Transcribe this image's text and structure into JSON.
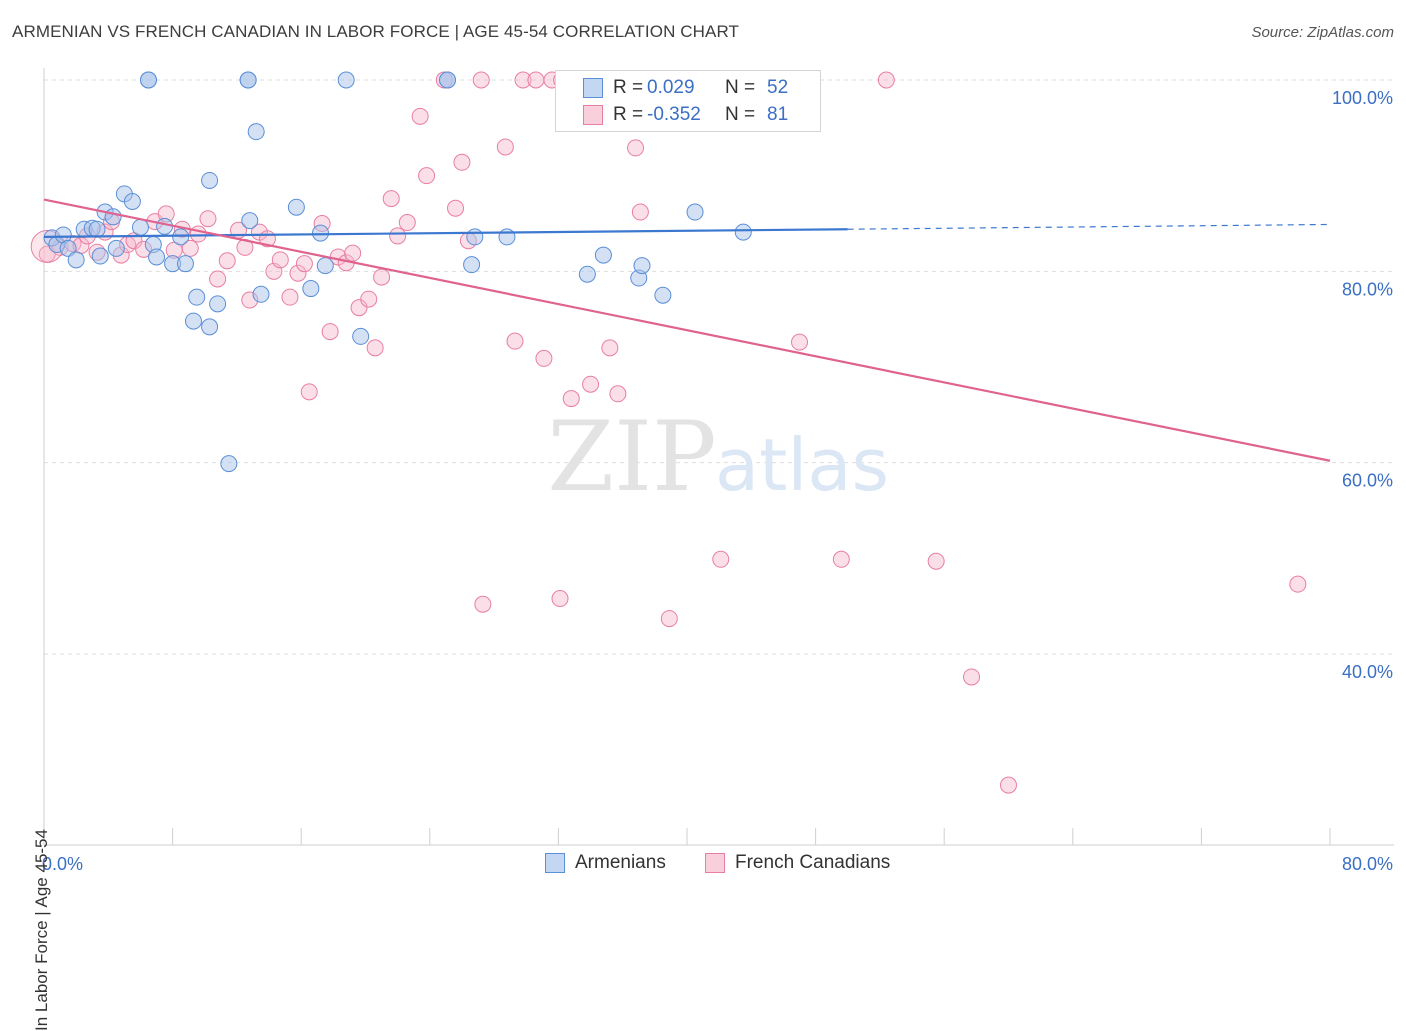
{
  "header": {
    "title": "ARMENIAN VS FRENCH CANADIAN IN LABOR FORCE | AGE 45-54 CORRELATION CHART",
    "source": "Source: ZipAtlas.com"
  },
  "watermark": {
    "zip": "ZIP",
    "atlas": "atlas"
  },
  "legend": {
    "armenians": {
      "r_label": "R =",
      "r_value": "0.029",
      "n_label": "N =",
      "n_value": "52"
    },
    "french_canadians": {
      "r_label": "R =",
      "r_value": "-0.352",
      "n_label": "N =",
      "n_value": "81"
    }
  },
  "bottom_legend": {
    "armenians": "Armenians",
    "french_canadians": "French Canadians"
  },
  "colors": {
    "armenian_fill": "#a9c4ec",
    "armenian_stroke": "#5b8fd6",
    "armenian_line": "#3c78d0",
    "french_fill": "#f6b9cc",
    "french_stroke": "#e87fa2",
    "french_line": "#e0628f",
    "axis_label": "#3b6fc4",
    "grid": "#dedede"
  },
  "chart_data": {
    "type": "scatter",
    "title": "ARMENIAN VS FRENCH CANADIAN IN LABOR FORCE | AGE 45-54 CORRELATION CHART",
    "xlabel": "",
    "ylabel": "In Labor Force | Age 45-54",
    "xlim": [
      0,
      80
    ],
    "ylim": [
      20,
      100
    ],
    "x_tick_labels": [
      "0.0%",
      "80.0%"
    ],
    "y_tick_values": [
      40,
      60,
      80,
      100
    ],
    "y_tick_labels": [
      "40.0%",
      "60.0%",
      "80.0%",
      "100.0%"
    ],
    "grid": "horizontal dashed",
    "legend_placement": "top-center",
    "series": [
      {
        "name": "Armenians",
        "trend": {
          "x_start": 0,
          "y_start": 83.6,
          "x_end": 50,
          "y_end": 84.4,
          "dashed_to_x": 80,
          "dashed_y_end": 84.9
        },
        "points": [
          [
            0.5,
            83.5
          ],
          [
            0.8,
            82.8
          ],
          [
            1.2,
            83.8
          ],
          [
            1.5,
            82.4
          ],
          [
            2.0,
            81.2
          ],
          [
            2.5,
            84.4
          ],
          [
            3.0,
            84.5
          ],
          [
            3.3,
            84.4
          ],
          [
            3.5,
            81.6
          ],
          [
            3.8,
            86.2
          ],
          [
            4.3,
            85.7
          ],
          [
            4.5,
            82.4
          ],
          [
            5.0,
            88.1
          ],
          [
            5.5,
            87.3
          ],
          [
            6.0,
            84.6
          ],
          [
            6.5,
            100.0
          ],
          [
            6.8,
            82.8
          ],
          [
            7.0,
            81.5
          ],
          [
            7.5,
            84.7
          ],
          [
            8.0,
            80.8
          ],
          [
            8.5,
            83.6
          ],
          [
            8.8,
            80.8
          ],
          [
            9.5,
            77.3
          ],
          [
            9.3,
            74.8
          ],
          [
            10.3,
            74.2
          ],
          [
            10.3,
            89.5
          ],
          [
            10.8,
            76.6
          ],
          [
            11.5,
            59.9
          ],
          [
            12.7,
            100.0
          ],
          [
            12.8,
            85.3
          ],
          [
            13.2,
            94.6
          ],
          [
            13.5,
            77.6
          ],
          [
            15.7,
            86.7
          ],
          [
            16.6,
            78.2
          ],
          [
            17.2,
            84.0
          ],
          [
            17.5,
            80.6
          ],
          [
            18.8,
            100.0
          ],
          [
            19.7,
            73.2
          ],
          [
            25.1,
            100.0
          ],
          [
            26.6,
            80.7
          ],
          [
            26.8,
            83.6
          ],
          [
            28.8,
            83.6
          ],
          [
            33.8,
            79.7
          ],
          [
            34.8,
            81.7
          ],
          [
            37.0,
            79.3
          ],
          [
            37.2,
            80.6
          ],
          [
            38.5,
            77.5
          ],
          [
            40.5,
            86.2
          ],
          [
            43.5,
            84.1
          ],
          [
            25.1,
            100.0
          ],
          [
            6.5,
            100.0
          ],
          [
            12.7,
            100.0
          ]
        ]
      },
      {
        "name": "French Canadians",
        "trend": {
          "x_start": 0,
          "y_start": 87.5,
          "x_end": 80,
          "y_end": 60.2
        },
        "points": [
          [
            0.2,
            81.8
          ],
          [
            1.0,
            82.5
          ],
          [
            1.8,
            82.9
          ],
          [
            2.3,
            82.7
          ],
          [
            2.7,
            83.7
          ],
          [
            3.3,
            82.0
          ],
          [
            3.8,
            84.1
          ],
          [
            4.2,
            85.2
          ],
          [
            4.8,
            81.7
          ],
          [
            5.2,
            82.8
          ],
          [
            5.6,
            83.2
          ],
          [
            6.2,
            82.3
          ],
          [
            6.9,
            85.2
          ],
          [
            7.6,
            86.0
          ],
          [
            8.1,
            82.2
          ],
          [
            8.6,
            84.4
          ],
          [
            9.1,
            82.4
          ],
          [
            9.6,
            83.9
          ],
          [
            10.2,
            85.5
          ],
          [
            10.8,
            79.2
          ],
          [
            11.4,
            81.1
          ],
          [
            12.1,
            84.3
          ],
          [
            12.5,
            82.5
          ],
          [
            12.8,
            77.0
          ],
          [
            13.4,
            84.1
          ],
          [
            13.9,
            83.4
          ],
          [
            14.3,
            80.0
          ],
          [
            14.7,
            81.2
          ],
          [
            15.3,
            77.3
          ],
          [
            15.8,
            79.8
          ],
          [
            16.2,
            80.8
          ],
          [
            16.5,
            67.4
          ],
          [
            17.3,
            85.0
          ],
          [
            17.8,
            73.7
          ],
          [
            18.3,
            81.5
          ],
          [
            18.8,
            80.9
          ],
          [
            19.2,
            81.9
          ],
          [
            19.6,
            76.2
          ],
          [
            20.2,
            77.1
          ],
          [
            20.6,
            72.0
          ],
          [
            21.0,
            79.4
          ],
          [
            21.6,
            87.6
          ],
          [
            22.0,
            83.7
          ],
          [
            22.6,
            85.1
          ],
          [
            23.4,
            96.2
          ],
          [
            23.8,
            90.0
          ],
          [
            24.9,
            100.0
          ],
          [
            25.6,
            86.6
          ],
          [
            26.0,
            91.4
          ],
          [
            26.4,
            83.2
          ],
          [
            27.2,
            100.0
          ],
          [
            28.7,
            93.0
          ],
          [
            29.3,
            72.7
          ],
          [
            29.8,
            100.0
          ],
          [
            30.6,
            100.0
          ],
          [
            31.1,
            70.9
          ],
          [
            31.6,
            100.0
          ],
          [
            32.2,
            100.0
          ],
          [
            32.8,
            66.7
          ],
          [
            33.3,
            100.0
          ],
          [
            34.0,
            68.2
          ],
          [
            34.9,
            100.0
          ],
          [
            35.2,
            72.0
          ],
          [
            35.7,
            67.2
          ],
          [
            36.2,
            100.0
          ],
          [
            36.8,
            92.9
          ],
          [
            37.1,
            86.2
          ],
          [
            40.1,
            100.0
          ],
          [
            44.6,
            100.0
          ],
          [
            46.7,
            100.0
          ],
          [
            47.0,
            72.6
          ],
          [
            52.4,
            100.0
          ],
          [
            42.1,
            49.9
          ],
          [
            49.6,
            49.9
          ],
          [
            55.5,
            49.7
          ],
          [
            60.0,
            26.3
          ],
          [
            57.7,
            37.6
          ],
          [
            78.0,
            47.3
          ],
          [
            38.9,
            43.7
          ],
          [
            32.1,
            45.8
          ],
          [
            27.3,
            45.2
          ]
        ]
      }
    ]
  }
}
